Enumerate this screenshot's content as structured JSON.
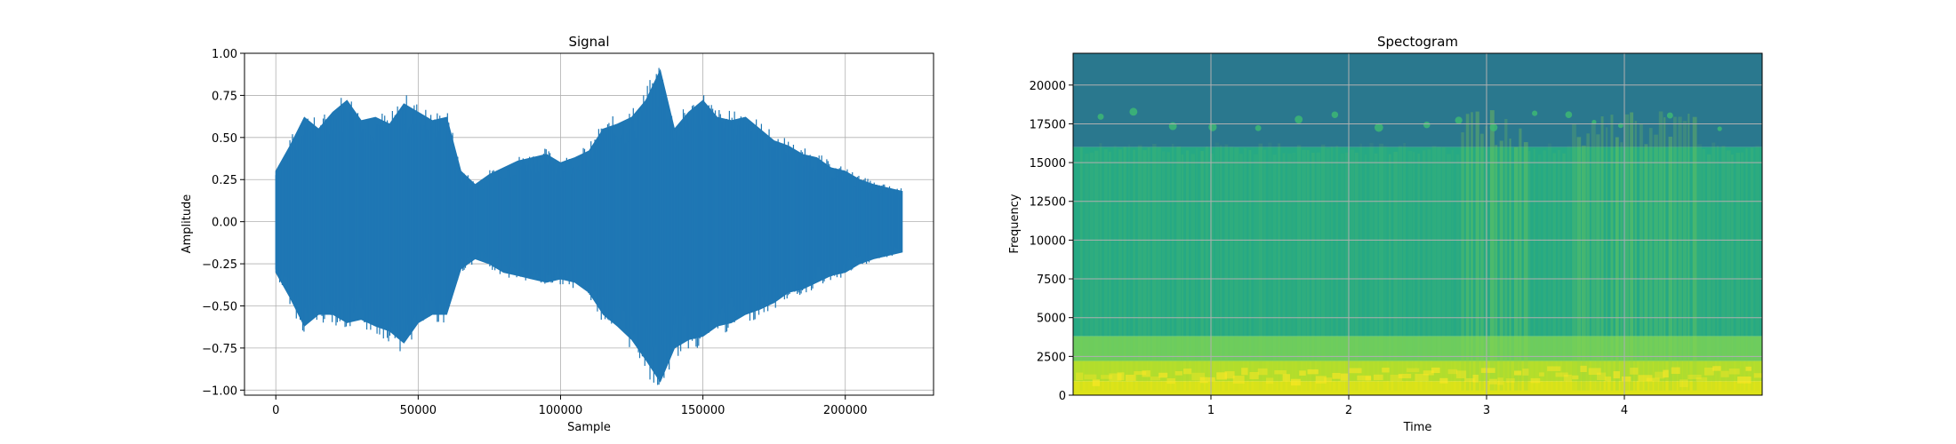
{
  "chart_data": [
    {
      "type": "line",
      "title": "Signal",
      "xlabel": "Sample",
      "ylabel": "Amplitude",
      "xlim": [
        -11000,
        231000
      ],
      "ylim": [
        -1.03,
        1.0
      ],
      "x_ticks": [
        0,
        50000,
        100000,
        150000,
        200000
      ],
      "x_tick_labels": [
        "0",
        "50000",
        "100000",
        "150000",
        "200000"
      ],
      "y_ticks": [
        -1.0,
        -0.75,
        -0.5,
        -0.25,
        0.0,
        0.25,
        0.5,
        0.75,
        1.0
      ],
      "y_tick_labels": [
        "−1.00",
        "−0.75",
        "−0.50",
        "−0.25",
        "0.00",
        "0.25",
        "0.50",
        "0.75",
        "1.00"
      ],
      "grid": true,
      "color": "#1f77b4",
      "series": [
        {
          "x": [
            0,
            5000,
            10000,
            15000,
            20000,
            25000,
            30000,
            35000,
            40000,
            45000,
            50000,
            55000,
            60000,
            65000,
            70000,
            75000,
            80000,
            85000,
            90000,
            95000,
            100000,
            105000,
            110000,
            115000,
            120000,
            125000,
            130000,
            135000,
            140000,
            145000,
            150000,
            155000,
            160000,
            165000,
            170000,
            175000,
            180000,
            185000,
            190000,
            195000,
            200000,
            205000,
            210000,
            215000,
            220000
          ],
          "upper": [
            0.3,
            0.45,
            0.62,
            0.55,
            0.65,
            0.72,
            0.6,
            0.62,
            0.58,
            0.7,
            0.65,
            0.6,
            0.62,
            0.3,
            0.22,
            0.28,
            0.32,
            0.36,
            0.38,
            0.4,
            0.35,
            0.38,
            0.42,
            0.55,
            0.58,
            0.62,
            0.72,
            0.9,
            0.55,
            0.65,
            0.72,
            0.62,
            0.6,
            0.62,
            0.55,
            0.48,
            0.45,
            0.4,
            0.38,
            0.32,
            0.3,
            0.25,
            0.22,
            0.2,
            0.18
          ],
          "lower": [
            -0.3,
            -0.45,
            -0.62,
            -0.55,
            -0.55,
            -0.6,
            -0.58,
            -0.62,
            -0.65,
            -0.72,
            -0.6,
            -0.55,
            -0.55,
            -0.28,
            -0.22,
            -0.25,
            -0.3,
            -0.32,
            -0.34,
            -0.36,
            -0.34,
            -0.36,
            -0.42,
            -0.55,
            -0.62,
            -0.7,
            -0.82,
            -0.95,
            -0.75,
            -0.7,
            -0.68,
            -0.62,
            -0.6,
            -0.55,
            -0.52,
            -0.48,
            -0.42,
            -0.4,
            -0.36,
            -0.32,
            -0.3,
            -0.25,
            -0.22,
            -0.2,
            -0.18
          ]
        }
      ]
    },
    {
      "type": "heatmap",
      "title": "Spectogram",
      "xlabel": "Time",
      "ylabel": "Frequency",
      "xlim": [
        0,
        5
      ],
      "ylim": [
        0,
        22050
      ],
      "x_ticks": [
        1,
        2,
        3,
        4
      ],
      "x_tick_labels": [
        "1",
        "2",
        "3",
        "4"
      ],
      "y_ticks": [
        0,
        2500,
        5000,
        7500,
        10000,
        12500,
        15000,
        17500,
        20000
      ],
      "y_tick_labels": [
        "0",
        "2500",
        "5000",
        "7500",
        "10000",
        "12500",
        "15000",
        "17500",
        "20000"
      ],
      "grid": true,
      "colormap": "viridis",
      "bands": [
        {
          "from": 16000,
          "to": 22050,
          "color": "#2a788e"
        },
        {
          "from": 3800,
          "to": 16000,
          "color": "#26a984"
        },
        {
          "from": 2200,
          "to": 3800,
          "color": "#6ccc5f"
        },
        {
          "from": 900,
          "to": 2200,
          "color": "#b5de2b"
        },
        {
          "from": 0,
          "to": 900,
          "color": "#dde318"
        }
      ]
    }
  ]
}
